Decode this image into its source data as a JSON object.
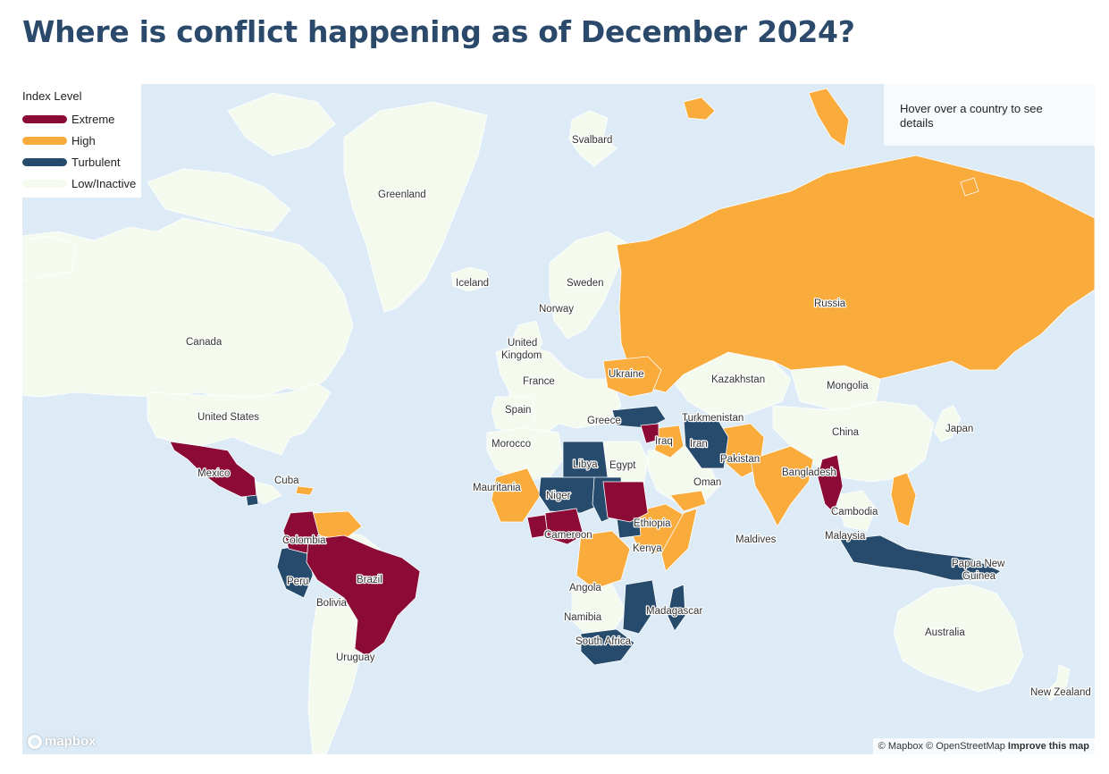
{
  "page": {
    "title": "Where is conflict happening as of December 2024?"
  },
  "legend": {
    "title": "Index Level",
    "items": [
      {
        "label": "Extreme",
        "color": "#8b0a36"
      },
      {
        "label": "High",
        "color": "#f9ab3b"
      },
      {
        "label": "Turbulent",
        "color": "#264b6c"
      },
      {
        "label": "Low/Inactive",
        "color": "#f5faef"
      }
    ]
  },
  "hover_info": {
    "text": "Hover over a country to see details"
  },
  "map": {
    "water_color": "#dcebf6",
    "land_color": "#f5faef",
    "labels": {
      "svalbard": "Svalbard",
      "greenland": "Greenland",
      "iceland": "Iceland",
      "sweden": "Sweden",
      "norway": "Norway",
      "united_kingdom_1": "United",
      "united_kingdom_2": "Kingdom",
      "russia": "Russia",
      "canada": "Canada",
      "ukraine": "Ukraine",
      "france": "France",
      "kazakhstan": "Kazakhstan",
      "mongolia": "Mongolia",
      "spain": "Spain",
      "greece": "Greece",
      "turkmenistan": "Turkmenistan",
      "united_states": "United States",
      "china": "China",
      "japan": "Japan",
      "morocco": "Morocco",
      "iraq": "Iraq",
      "iran": "Iran",
      "libya": "Libya",
      "egypt": "Egypt",
      "pakistan": "Pakistan",
      "mexico": "Mexico",
      "bangladesh": "Bangladesh",
      "cuba": "Cuba",
      "oman": "Oman",
      "mauritania": "Mauritania",
      "niger": "Niger",
      "cambodia": "Cambodia",
      "ethiopia": "Ethiopia",
      "colombia": "Colombia",
      "cameroon": "Cameroon",
      "maldives": "Maldives",
      "malaysia": "Malaysia",
      "kenya": "Kenya",
      "papua_1": "Papua New",
      "papua_2": "Guinea",
      "brazil": "Brazil",
      "peru": "Peru",
      "angola": "Angola",
      "bolivia": "Bolivia",
      "madagascar": "Madagascar",
      "namibia": "Namibia",
      "south_africa": "South Africa",
      "australia": "Australia",
      "uruguay": "Uruguay",
      "new_zealand": "New Zealand"
    }
  },
  "logo": {
    "text": "mapbox"
  },
  "attribution": {
    "mapbox": "© Mapbox",
    "osm": "© OpenStreetMap",
    "improve": "Improve this map"
  }
}
